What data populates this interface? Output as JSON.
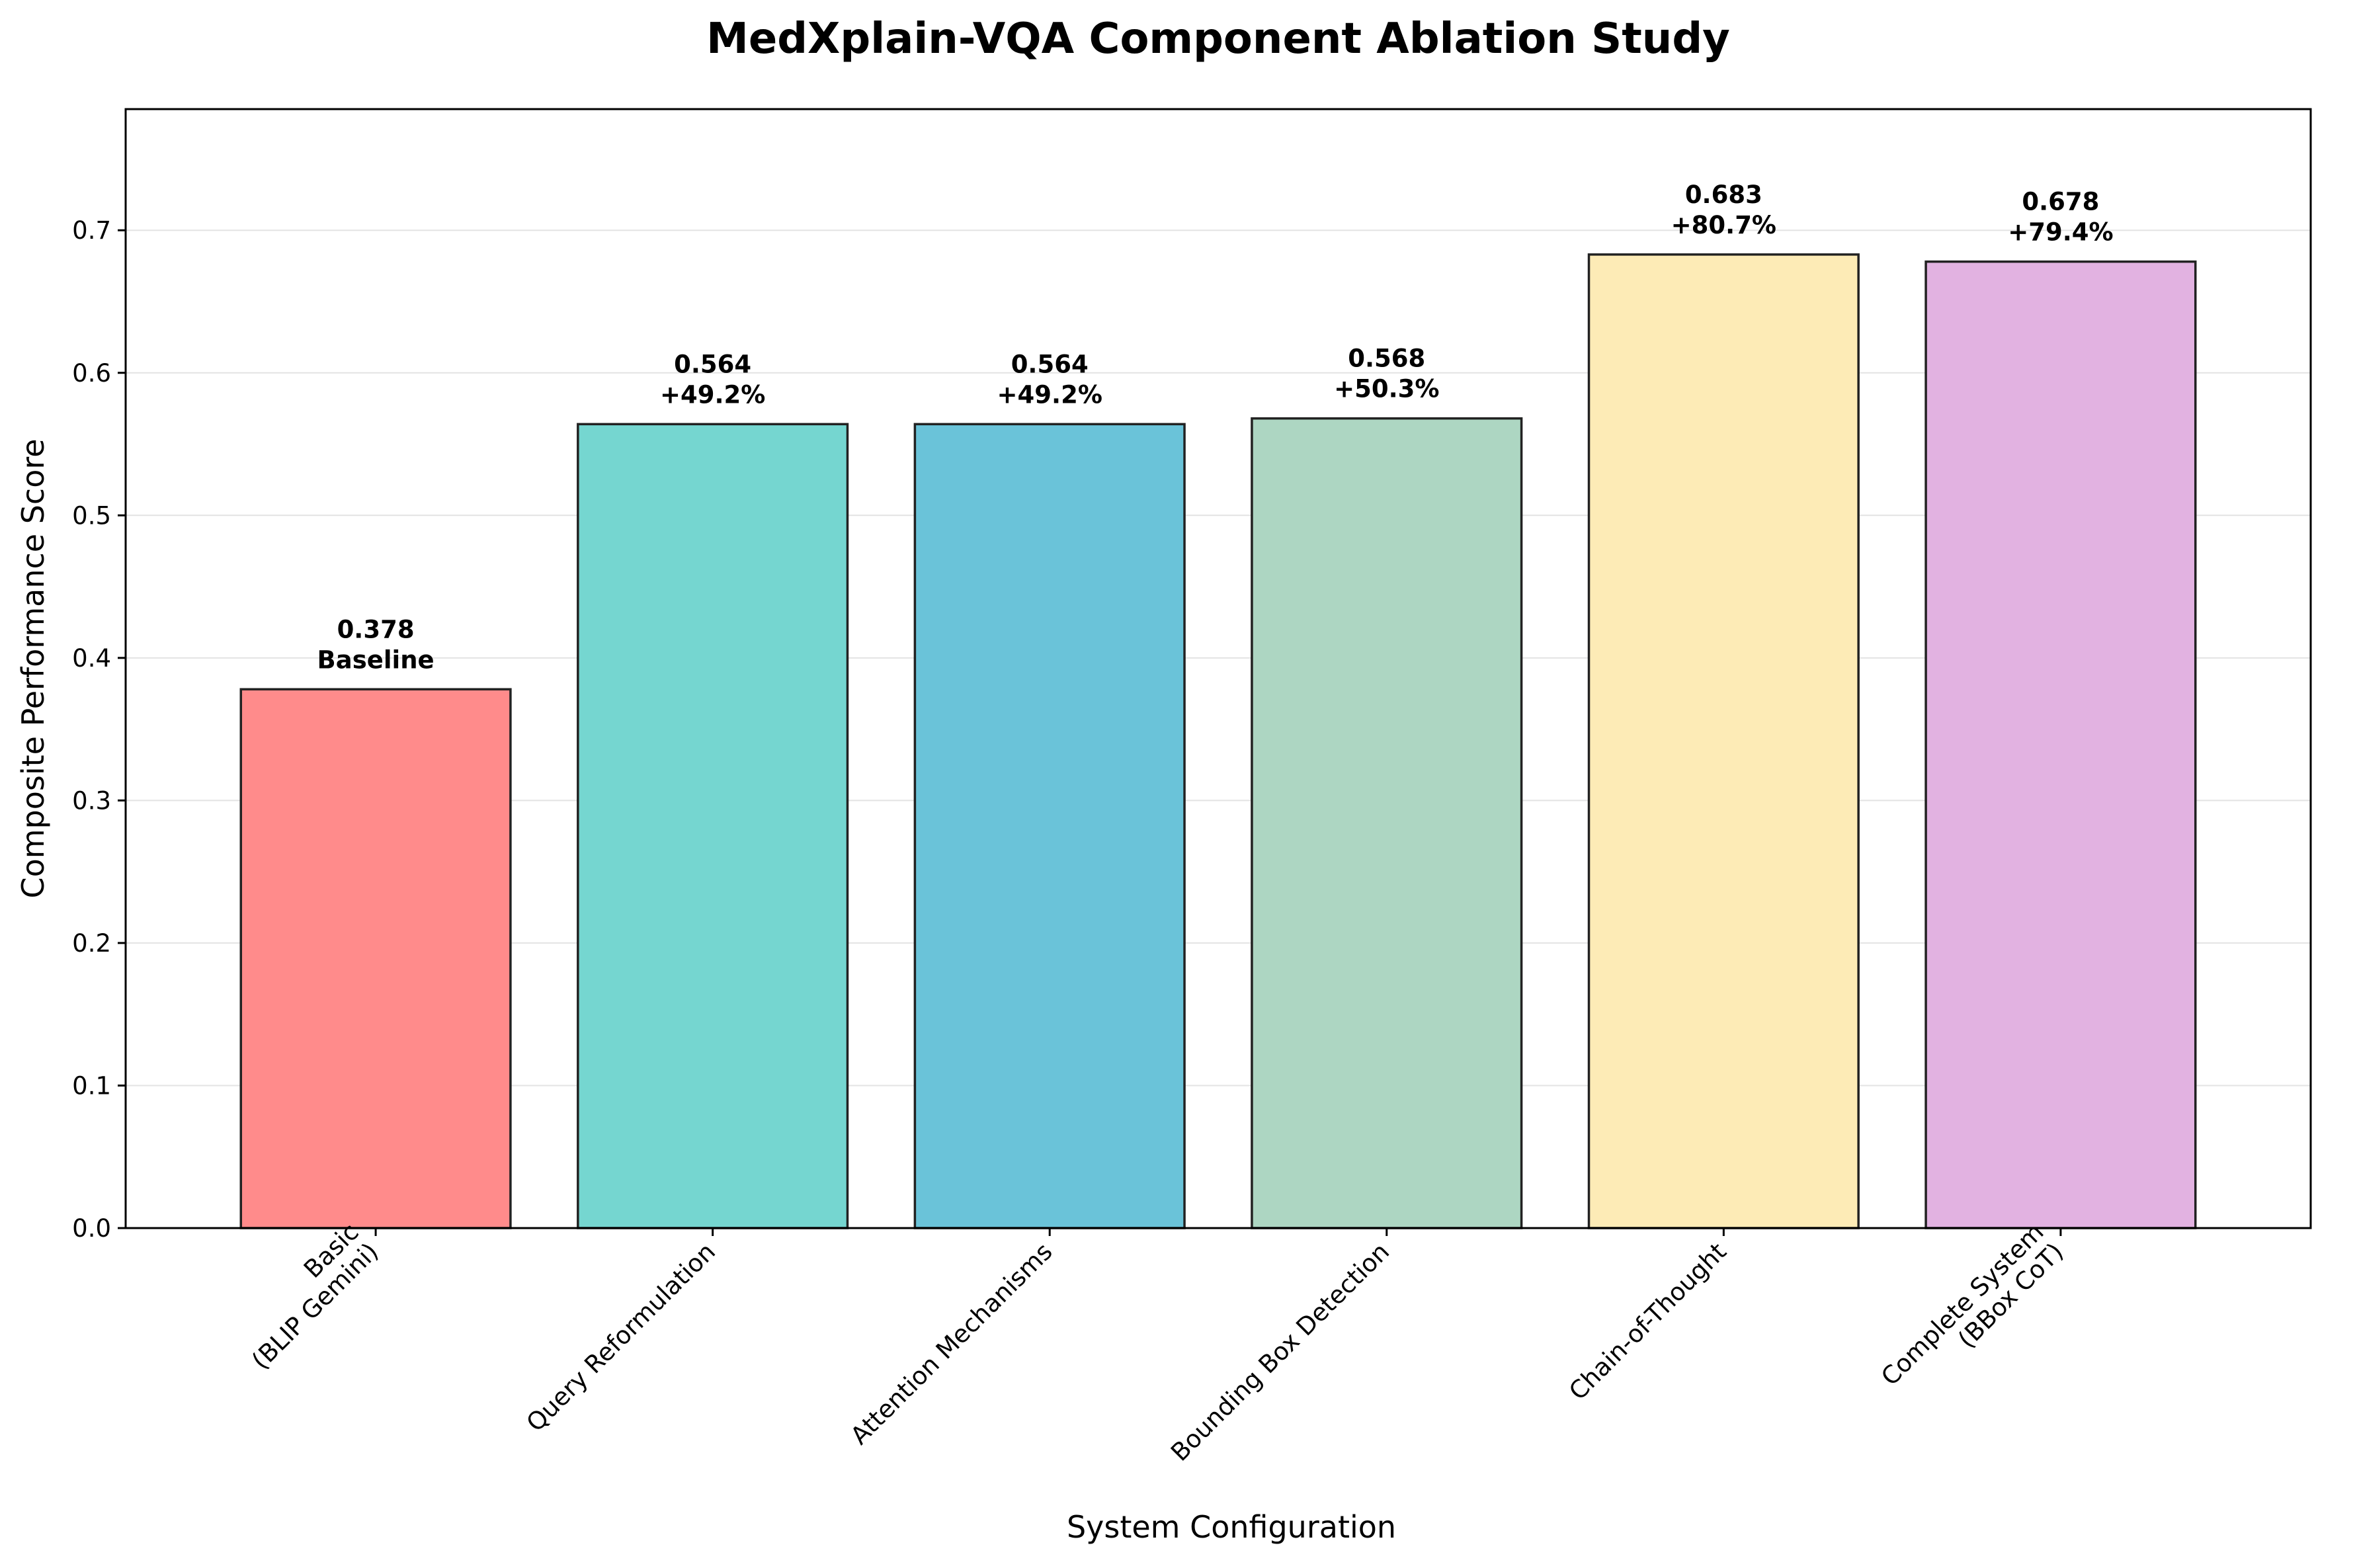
{
  "chart_data": {
    "type": "bar",
    "title": "MedXplain-VQA Component Ablation Study",
    "xlabel": "System Configuration",
    "ylabel": "Composite Performance Score",
    "categories": [
      "Basic\n(BLIP Gemini)",
      "Query Reformulation",
      "Attention Mechanisms",
      "Bounding Box Detection",
      "Chain-of-Thought",
      "Complete System\n(BBox CoT)"
    ],
    "values": [
      0.378,
      0.564,
      0.564,
      0.568,
      0.683,
      0.678
    ],
    "value_labels": [
      "0.378",
      "0.564",
      "0.564",
      "0.568",
      "0.683",
      "0.678"
    ],
    "change_labels": [
      "Baseline",
      "+49.2%",
      "+49.2%",
      "+50.3%",
      "+80.7%",
      "+79.4%"
    ],
    "colors": [
      "#ff8b8b",
      "#75d6d0",
      "#6ac3d9",
      "#add6c2",
      "#fdebb6",
      "#e2b2e1"
    ],
    "ylim": [
      0,
      0.785
    ],
    "yticks": [
      "0.0",
      "0.1",
      "0.2",
      "0.3",
      "0.4",
      "0.5",
      "0.6",
      "0.7"
    ],
    "grid": "y"
  }
}
